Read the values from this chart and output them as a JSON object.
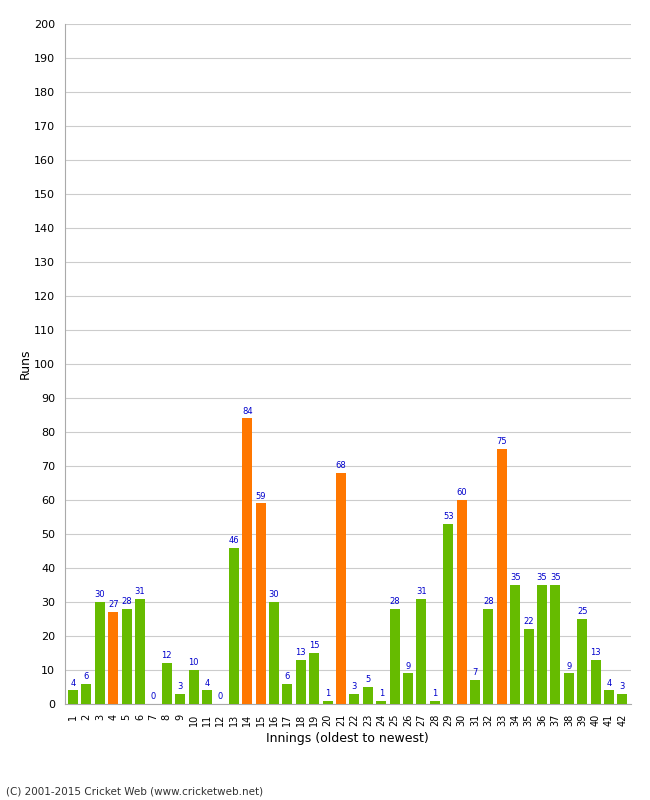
{
  "innings": [
    1,
    2,
    3,
    4,
    5,
    6,
    7,
    8,
    9,
    10,
    11,
    12,
    13,
    14,
    15,
    16,
    17,
    18,
    19,
    20,
    21,
    22,
    23,
    24,
    25,
    26,
    27,
    28,
    29,
    30,
    31,
    32,
    33,
    34,
    35,
    36,
    37,
    38,
    39,
    40,
    41,
    42
  ],
  "values": [
    4,
    6,
    30,
    27,
    28,
    31,
    0,
    12,
    3,
    10,
    4,
    0,
    46,
    84,
    59,
    30,
    6,
    13,
    15,
    1,
    68,
    3,
    5,
    1,
    28,
    9,
    31,
    1,
    53,
    60,
    7,
    28,
    75,
    35,
    22,
    35,
    35,
    9,
    25,
    13,
    4,
    3
  ],
  "colors": [
    "#66bb00",
    "#66bb00",
    "#66bb00",
    "#ff7700",
    "#66bb00",
    "#66bb00",
    "#66bb00",
    "#66bb00",
    "#66bb00",
    "#66bb00",
    "#66bb00",
    "#66bb00",
    "#66bb00",
    "#ff7700",
    "#ff7700",
    "#66bb00",
    "#66bb00",
    "#66bb00",
    "#66bb00",
    "#66bb00",
    "#ff7700",
    "#66bb00",
    "#66bb00",
    "#66bb00",
    "#66bb00",
    "#66bb00",
    "#66bb00",
    "#66bb00",
    "#66bb00",
    "#ff7700",
    "#66bb00",
    "#66bb00",
    "#ff7700",
    "#66bb00",
    "#66bb00",
    "#66bb00",
    "#66bb00",
    "#66bb00",
    "#66bb00",
    "#66bb00",
    "#66bb00",
    "#66bb00"
  ],
  "xlabel": "Innings (oldest to newest)",
  "ylabel": "Runs",
  "ylim": [
    0,
    200
  ],
  "yticks": [
    0,
    10,
    20,
    30,
    40,
    50,
    60,
    70,
    80,
    90,
    100,
    110,
    120,
    130,
    140,
    150,
    160,
    170,
    180,
    190,
    200
  ],
  "label_color": "#0000cc",
  "background_color": "#ffffff",
  "grid_color": "#cccccc",
  "copyright": "(C) 2001-2015 Cricket Web (www.cricketweb.net)"
}
